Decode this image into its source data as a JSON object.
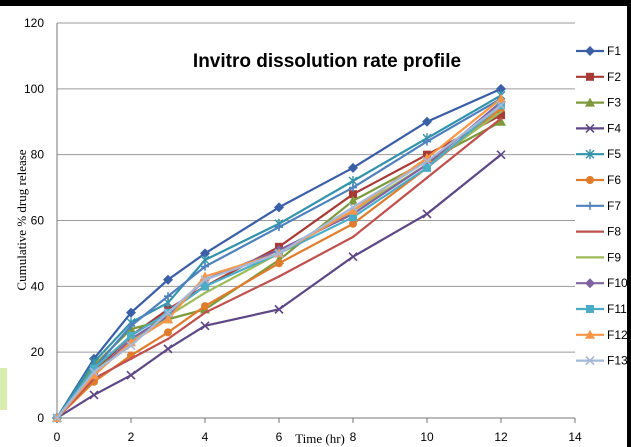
{
  "chart_data": {
    "type": "line",
    "title": "Invitro dissolution rate profile",
    "xlabel": "Time (hr)",
    "ylabel": "Cumulative % drug release",
    "xlim": [
      0,
      14
    ],
    "ylim": [
      0,
      120
    ],
    "x_ticks": [
      "0",
      "2",
      "4",
      "6",
      "8",
      "10",
      "12",
      "14"
    ],
    "y_ticks": [
      "0",
      "20",
      "40",
      "60",
      "80",
      "100",
      "120"
    ],
    "grid": "horizontal",
    "legend_position": "right",
    "x": [
      0,
      1,
      2,
      3,
      4,
      6,
      8,
      10,
      12
    ],
    "series": [
      {
        "name": "F1",
        "color": "#3a5fa6",
        "marker": "diamond",
        "values": [
          0,
          18,
          32,
          42,
          50,
          64,
          76,
          90,
          100
        ]
      },
      {
        "name": "F2",
        "color": "#a83a36",
        "marker": "square",
        "values": [
          0,
          14,
          25,
          33,
          40,
          52,
          68,
          80,
          92
        ]
      },
      {
        "name": "F3",
        "color": "#7c9a3a",
        "marker": "triangle",
        "values": [
          0,
          16,
          27,
          30,
          33,
          48,
          66,
          78,
          90
        ]
      },
      {
        "name": "F4",
        "color": "#5e4785",
        "marker": "x",
        "values": [
          0,
          7,
          13,
          21,
          28,
          33,
          49,
          62,
          80
        ]
      },
      {
        "name": "F5",
        "color": "#3393ab",
        "marker": "asterisk",
        "values": [
          0,
          17,
          29,
          35,
          48,
          59,
          72,
          85,
          98
        ]
      },
      {
        "name": "F6",
        "color": "#e07c2c",
        "marker": "circle",
        "values": [
          0,
          11,
          19,
          26,
          34,
          47,
          59,
          76,
          94
        ]
      },
      {
        "name": "F7",
        "color": "#4f81bd",
        "marker": "plus",
        "values": [
          0,
          15,
          28,
          37,
          46,
          58,
          70,
          84,
          97
        ]
      },
      {
        "name": "F8",
        "color": "#c0504d",
        "marker": "none",
        "values": [
          0,
          12,
          18,
          24,
          32,
          43,
          55,
          73,
          91
        ]
      },
      {
        "name": "F9",
        "color": "#9bbb59",
        "marker": "none",
        "values": [
          0,
          14,
          23,
          31,
          38,
          50,
          63,
          77,
          93
        ]
      },
      {
        "name": "F10",
        "color": "#8064a2",
        "marker": "diamond",
        "values": [
          0,
          13,
          24,
          31,
          42,
          51,
          62,
          77,
          96
        ]
      },
      {
        "name": "F11",
        "color": "#4bacc6",
        "marker": "square",
        "values": [
          0,
          15,
          25,
          32,
          40,
          50,
          61,
          76,
          95
        ]
      },
      {
        "name": "F12",
        "color": "#f79646",
        "marker": "triangle",
        "values": [
          0,
          13,
          23,
          30,
          43,
          50,
          63,
          79,
          97
        ]
      },
      {
        "name": "F13",
        "color": "#a6b8d8",
        "marker": "x",
        "values": [
          0,
          14,
          22,
          32,
          42,
          50,
          64,
          78,
          95
        ]
      }
    ]
  }
}
